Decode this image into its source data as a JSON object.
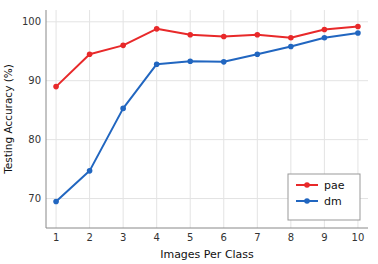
{
  "chart_data": {
    "type": "line",
    "xlabel": "Images Per Class",
    "ylabel": "Testing Accuracy (%)",
    "x": [
      1,
      2,
      3,
      4,
      5,
      6,
      7,
      8,
      9,
      10
    ],
    "series": [
      {
        "name": "pae",
        "color": "#e8292a",
        "marker": "circle",
        "values": [
          89.0,
          94.5,
          96.0,
          98.8,
          97.8,
          97.5,
          97.8,
          97.3,
          98.7,
          99.2
        ]
      },
      {
        "name": "dm",
        "color": "#2166c0",
        "marker": "circle",
        "values": [
          69.5,
          74.7,
          85.3,
          92.8,
          93.3,
          93.2,
          94.5,
          95.8,
          97.3,
          98.1
        ]
      }
    ],
    "xlim": [
      0.7,
      10.3
    ],
    "ylim": [
      65,
      102
    ],
    "xticks": [
      1,
      2,
      3,
      4,
      5,
      6,
      7,
      8,
      9,
      10
    ],
    "yticks": [
      70,
      80,
      90,
      100
    ],
    "grid": true,
    "legend": "lower right"
  }
}
